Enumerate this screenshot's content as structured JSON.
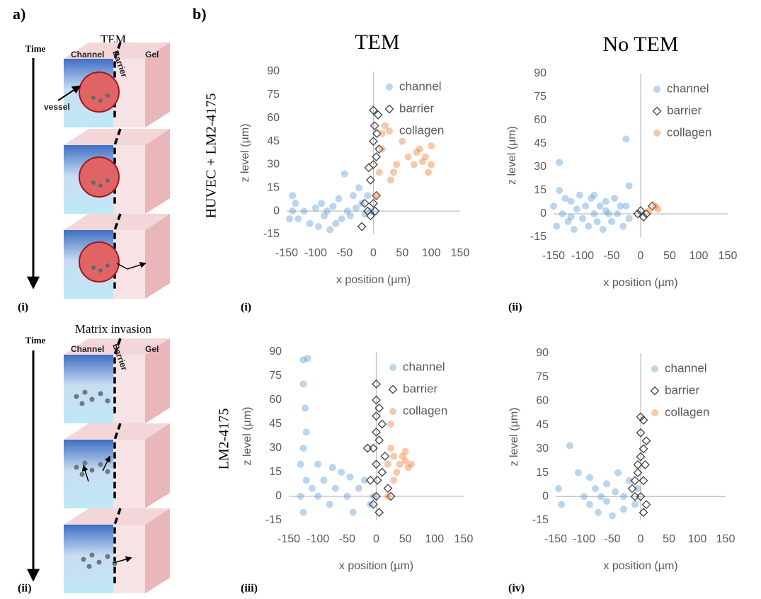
{
  "figure": {
    "panel_a": "a)",
    "panel_b": "b)",
    "col_titles": [
      "TEM",
      "No TEM"
    ],
    "row_labels": [
      "HUVEC + LM2-4175",
      "LM2-4175"
    ],
    "panel_labels": [
      "(i)",
      "(ii)",
      "(iii)",
      "(iv)"
    ]
  },
  "diagram": {
    "top": {
      "title": "TEM",
      "time": "Time",
      "channel": "Channel",
      "barrier": "Barrier",
      "gel": "Gel",
      "vessel": "vessel",
      "label": "(i)"
    },
    "bottom": {
      "title": "Matrix invasion",
      "time": "Time",
      "channel": "Channel",
      "barrier": "Barrier",
      "gel": "Gel",
      "label": "(ii)"
    }
  },
  "chart_data": [
    {
      "type": "scatter",
      "xlabel": "x position (µm)",
      "ylabel": "z level  (µm)",
      "xlim": [
        -150,
        150
      ],
      "ylim": [
        -15,
        90
      ],
      "xticks": [
        -150,
        -100,
        -50,
        0,
        50,
        100,
        150
      ],
      "yticks": [
        -15,
        0,
        15,
        30,
        45,
        60,
        75,
        90
      ],
      "legend": "top-right",
      "series": [
        {
          "name": "channel",
          "color": "#5b9bd5",
          "marker": "circle",
          "x": [
            -140,
            -140,
            -135,
            -130,
            -120,
            -110,
            -100,
            -95,
            -90,
            -80,
            -75,
            -70,
            -60,
            -55,
            -50,
            -45,
            -40,
            -35,
            -30,
            -25,
            -20,
            -15,
            -10,
            -5,
            -145,
            -85,
            -65
          ],
          "values": [
            10,
            0,
            5,
            -5,
            0,
            -8,
            2,
            -10,
            5,
            0,
            -12,
            3,
            8,
            -5,
            24,
            0,
            -3,
            10,
            2,
            15,
            5,
            -2,
            10,
            0,
            -5,
            -3,
            -8
          ]
        },
        {
          "name": "barrier",
          "color": "#404040",
          "marker": "diamond",
          "x": [
            -20,
            -15,
            -10,
            -5,
            -5,
            0,
            0,
            0,
            0,
            2,
            5,
            5,
            8,
            10,
            3,
            -8,
            6
          ],
          "values": [
            -10,
            5,
            0,
            20,
            -3,
            65,
            45,
            30,
            5,
            55,
            35,
            10,
            62,
            40,
            0,
            28,
            50
          ]
        },
        {
          "name": "collagen",
          "color": "#ed7d31",
          "marker": "circle",
          "x": [
            5,
            10,
            15,
            20,
            30,
            35,
            40,
            50,
            60,
            70,
            80,
            90,
            100,
            95,
            100,
            15,
            75,
            85
          ],
          "values": [
            10,
            25,
            40,
            55,
            20,
            25,
            30,
            45,
            35,
            30,
            40,
            35,
            30,
            25,
            42,
            50,
            38,
            32
          ]
        }
      ]
    },
    {
      "type": "scatter",
      "xlabel": "x position (µm)",
      "ylabel": "z level  (µm)",
      "xlim": [
        -150,
        150
      ],
      "ylim": [
        -15,
        90
      ],
      "xticks": [
        -150,
        -100,
        -50,
        0,
        50,
        100,
        150
      ],
      "yticks": [
        -15,
        0,
        15,
        30,
        45,
        60,
        75,
        90
      ],
      "legend": "top-right",
      "series": [
        {
          "name": "channel",
          "color": "#5b9bd5",
          "marker": "circle",
          "x": [
            -150,
            -145,
            -140,
            -135,
            -130,
            -125,
            -120,
            -115,
            -110,
            -105,
            -100,
            -95,
            -90,
            -85,
            -80,
            -75,
            -70,
            -65,
            -60,
            -55,
            -50,
            -45,
            -40,
            -35,
            -30,
            -25,
            -20,
            -140,
            -25,
            -20,
            -120,
            -80,
            -60
          ],
          "values": [
            5,
            -8,
            15,
            0,
            10,
            -5,
            8,
            -10,
            3,
            12,
            -3,
            5,
            -8,
            10,
            0,
            -5,
            5,
            -10,
            8,
            0,
            -5,
            10,
            0,
            5,
            -8,
            48,
            18,
            33,
            5,
            -3,
            -2,
            12,
            2
          ]
        },
        {
          "name": "barrier",
          "color": "#404040",
          "marker": "diamond",
          "x": [
            -5,
            0,
            5,
            10,
            20
          ],
          "values": [
            0,
            2,
            -2,
            0,
            5
          ]
        },
        {
          "name": "collagen",
          "color": "#ed7d31",
          "marker": "circle",
          "x": [
            15,
            25,
            30
          ],
          "values": [
            2,
            5,
            3
          ]
        }
      ]
    },
    {
      "type": "scatter",
      "xlabel": "x position (µm)",
      "ylabel": "z level  (µm)",
      "xlim": [
        -150,
        150
      ],
      "ylim": [
        -15,
        90
      ],
      "xticks": [
        -150,
        -100,
        -50,
        0,
        50,
        100,
        150
      ],
      "yticks": [
        -15,
        0,
        15,
        30,
        45,
        60,
        75,
        90
      ],
      "legend": "top-right",
      "series": [
        {
          "name": "channel",
          "color": "#5b9bd5",
          "marker": "circle",
          "x": [
            -125,
            -118,
            -125,
            -122,
            -120,
            -125,
            -130,
            -120,
            -110,
            -100,
            -90,
            -80,
            -70,
            -60,
            -50,
            -40,
            -30,
            -20,
            -10,
            -5,
            -125,
            -100,
            -75,
            -45,
            -130
          ],
          "values": [
            85,
            86,
            70,
            55,
            40,
            30,
            20,
            10,
            5,
            0,
            10,
            -5,
            5,
            15,
            0,
            -10,
            5,
            10,
            -5,
            0,
            -10,
            20,
            18,
            12,
            0
          ]
        },
        {
          "name": "barrier",
          "color": "#404040",
          "marker": "diamond",
          "x": [
            -10,
            -5,
            0,
            0,
            0,
            0,
            0,
            0,
            5,
            5,
            5,
            10,
            -5,
            10,
            15,
            20,
            25,
            -15,
            2
          ],
          "values": [
            10,
            30,
            70,
            60,
            50,
            40,
            20,
            0,
            55,
            35,
            -10,
            45,
            -5,
            15,
            25,
            5,
            0,
            30,
            10
          ]
        },
        {
          "name": "collagen",
          "color": "#ed7d31",
          "marker": "circle",
          "x": [
            20,
            25,
            30,
            35,
            40,
            45,
            50,
            55,
            60,
            25,
            20,
            30,
            50
          ],
          "values": [
            20,
            30,
            25,
            15,
            20,
            25,
            22,
            18,
            20,
            45,
            0,
            10,
            28
          ]
        }
      ]
    },
    {
      "type": "scatter",
      "xlabel": "x position (µm)",
      "ylabel": "z level  (µm)",
      "xlim": [
        -150,
        150
      ],
      "ylim": [
        -15,
        90
      ],
      "xticks": [
        -150,
        -100,
        -50,
        0,
        50,
        100,
        150
      ],
      "yticks": [
        -15,
        0,
        15,
        30,
        45,
        60,
        75,
        90
      ],
      "legend": "top-right",
      "series": [
        {
          "name": "channel",
          "color": "#5b9bd5",
          "marker": "circle",
          "x": [
            -125,
            -145,
            -140,
            -110,
            -100,
            -90,
            -80,
            -75,
            -70,
            -60,
            -50,
            -45,
            -40,
            -30,
            -20,
            -10,
            -5,
            -60,
            -90,
            -30
          ],
          "values": [
            32,
            5,
            -5,
            15,
            0,
            -5,
            5,
            -10,
            0,
            8,
            -12,
            3,
            15,
            0,
            10,
            -5,
            5,
            -3,
            12,
            -8
          ]
        },
        {
          "name": "barrier",
          "color": "#404040",
          "marker": "diamond",
          "x": [
            -15,
            -10,
            -5,
            0,
            5,
            0,
            5,
            0,
            -5,
            5,
            0,
            10,
            5,
            10,
            -10,
            8
          ],
          "values": [
            5,
            10,
            15,
            50,
            48,
            40,
            30,
            25,
            20,
            10,
            0,
            -5,
            -10,
            35,
            0,
            20
          ]
        },
        {
          "name": "collagen",
          "color": "#ed7d31",
          "marker": "circle",
          "x": [],
          "values": []
        }
      ]
    }
  ]
}
